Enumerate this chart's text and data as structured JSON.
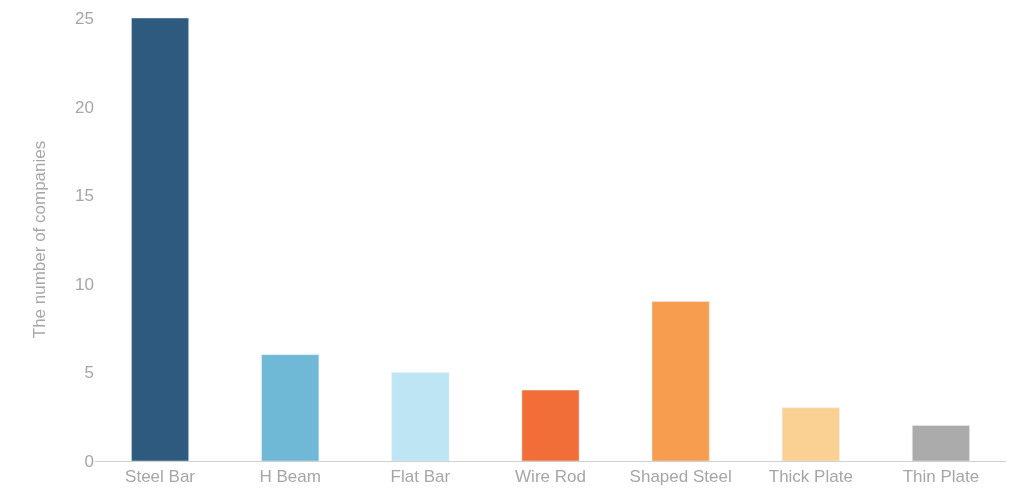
{
  "chart_data": {
    "type": "bar",
    "ylabel": "The number of companies",
    "categories": [
      "Steel Bar",
      "H Beam",
      "Flat Bar",
      "Wire Rod",
      "Shaped Steel",
      "Thick Plate",
      "Thin Plate"
    ],
    "values": [
      25,
      6,
      5,
      4,
      9,
      3,
      2
    ],
    "colors": [
      "#2e5a7e",
      "#6fb8d6",
      "#bde5f3",
      "#f26e38",
      "#f79d4f",
      "#fbd193",
      "#ababab"
    ],
    "ylim": [
      0,
      25
    ],
    "yticks": [
      0,
      5,
      10,
      15,
      20,
      25
    ]
  }
}
